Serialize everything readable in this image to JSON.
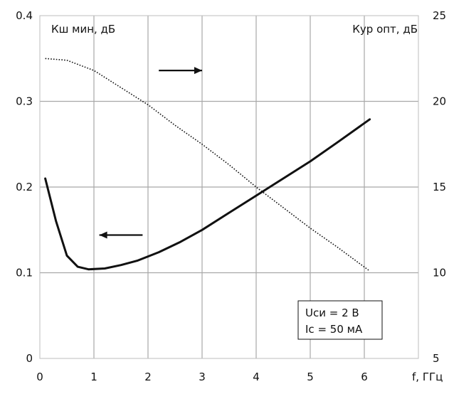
{
  "chart_data": {
    "type": "line",
    "y_left_label": "Кш мин, дБ",
    "y_right_label": "Кур опт, дБ",
    "x_label": "f, ГГц",
    "xlim": [
      0,
      7
    ],
    "ylim_left": [
      0,
      0.4
    ],
    "ylim_right": [
      5,
      25
    ],
    "x_ticks": [
      "0",
      "1",
      "2",
      "3",
      "4",
      "5",
      "6"
    ],
    "y_left_ticks": [
      "0",
      "0.1",
      "0.2",
      "0.3",
      "0.4"
    ],
    "y_right_ticks": [
      "5",
      "10",
      "15",
      "20",
      "25"
    ],
    "grid": true,
    "annotation": [
      "Uси = 2 В",
      "Ic = 50 мА"
    ],
    "series": [
      {
        "axis": "left",
        "style": "solid",
        "x": [
          0.1,
          0.3,
          0.5,
          0.7,
          0.9,
          1.2,
          1.5,
          1.8,
          2.2,
          2.6,
          3.0,
          3.5,
          4.0,
          4.5,
          5.0,
          5.5,
          6.1
        ],
        "values": [
          0.21,
          0.16,
          0.12,
          0.107,
          0.104,
          0.105,
          0.109,
          0.114,
          0.124,
          0.136,
          0.15,
          0.17,
          0.19,
          0.21,
          0.23,
          0.252,
          0.279
        ]
      },
      {
        "axis": "right",
        "style": "dotted",
        "x": [
          0.1,
          0.5,
          1.0,
          1.5,
          2.0,
          2.5,
          3.0,
          3.5,
          4.0,
          4.5,
          5.0,
          5.5,
          6.1
        ],
        "values": [
          22.5,
          22.4,
          21.8,
          20.8,
          19.8,
          18.6,
          17.5,
          16.3,
          15.0,
          13.8,
          12.6,
          11.5,
          10.1
        ]
      }
    ],
    "arrows": [
      {
        "direction": "right",
        "x": [
          2.2,
          3.0
        ],
        "y_right": 21.8
      },
      {
        "direction": "left",
        "x": [
          1.1,
          1.9
        ],
        "y_right": 12.2
      }
    ]
  }
}
